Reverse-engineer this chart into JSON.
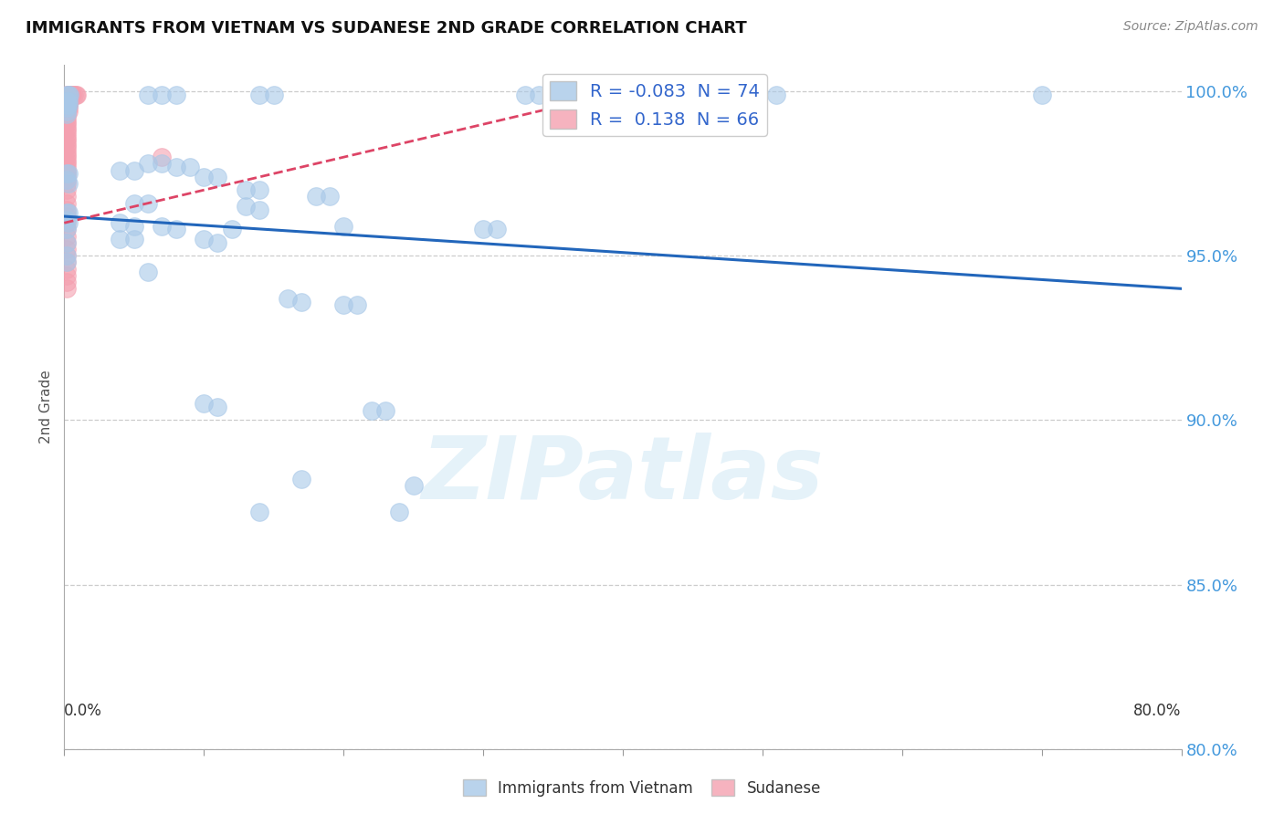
{
  "title": "IMMIGRANTS FROM VIETNAM VS SUDANESE 2ND GRADE CORRELATION CHART",
  "source": "Source: ZipAtlas.com",
  "ylabel": "2nd Grade",
  "x_range": [
    0.0,
    0.8
  ],
  "y_range": [
    0.818,
    1.008
  ],
  "legend_r_blue": "-0.083",
  "legend_n_blue": "74",
  "legend_r_pink": "0.138",
  "legend_n_pink": "66",
  "blue_color": "#a8c8e8",
  "pink_color": "#f4a0b0",
  "trendline_blue_color": "#2266bb",
  "trendline_pink_color": "#dd4466",
  "watermark": "ZIPatlas",
  "trendline_blue": [
    [
      0.0,
      0.962
    ],
    [
      0.8,
      0.94
    ]
  ],
  "trendline_pink": [
    [
      0.0,
      0.96
    ],
    [
      0.4,
      1.0
    ]
  ],
  "blue_points": [
    [
      0.002,
      0.999
    ],
    [
      0.003,
      0.999
    ],
    [
      0.004,
      0.999
    ],
    [
      0.06,
      0.999
    ],
    [
      0.07,
      0.999
    ],
    [
      0.08,
      0.999
    ],
    [
      0.14,
      0.999
    ],
    [
      0.15,
      0.999
    ],
    [
      0.33,
      0.999
    ],
    [
      0.34,
      0.999
    ],
    [
      0.51,
      0.999
    ],
    [
      0.7,
      0.999
    ],
    [
      0.002,
      0.997
    ],
    [
      0.003,
      0.997
    ],
    [
      0.002,
      0.996
    ],
    [
      0.003,
      0.996
    ],
    [
      0.002,
      0.995
    ],
    [
      0.002,
      0.994
    ],
    [
      0.002,
      0.993
    ],
    [
      0.06,
      0.978
    ],
    [
      0.07,
      0.978
    ],
    [
      0.08,
      0.977
    ],
    [
      0.09,
      0.977
    ],
    [
      0.04,
      0.976
    ],
    [
      0.05,
      0.976
    ],
    [
      0.002,
      0.975
    ],
    [
      0.003,
      0.975
    ],
    [
      0.002,
      0.973
    ],
    [
      0.003,
      0.972
    ],
    [
      0.1,
      0.974
    ],
    [
      0.11,
      0.974
    ],
    [
      0.13,
      0.97
    ],
    [
      0.14,
      0.97
    ],
    [
      0.18,
      0.968
    ],
    [
      0.19,
      0.968
    ],
    [
      0.05,
      0.966
    ],
    [
      0.06,
      0.966
    ],
    [
      0.13,
      0.965
    ],
    [
      0.14,
      0.964
    ],
    [
      0.002,
      0.963
    ],
    [
      0.003,
      0.963
    ],
    [
      0.002,
      0.961
    ],
    [
      0.003,
      0.96
    ],
    [
      0.04,
      0.96
    ],
    [
      0.05,
      0.959
    ],
    [
      0.07,
      0.959
    ],
    [
      0.08,
      0.958
    ],
    [
      0.12,
      0.958
    ],
    [
      0.2,
      0.959
    ],
    [
      0.3,
      0.958
    ],
    [
      0.31,
      0.958
    ],
    [
      0.002,
      0.958
    ],
    [
      0.04,
      0.955
    ],
    [
      0.05,
      0.955
    ],
    [
      0.1,
      0.955
    ],
    [
      0.11,
      0.954
    ],
    [
      0.002,
      0.954
    ],
    [
      0.002,
      0.95
    ],
    [
      0.002,
      0.948
    ],
    [
      0.06,
      0.945
    ],
    [
      0.16,
      0.937
    ],
    [
      0.17,
      0.936
    ],
    [
      0.2,
      0.935
    ],
    [
      0.21,
      0.935
    ],
    [
      0.1,
      0.905
    ],
    [
      0.11,
      0.904
    ],
    [
      0.22,
      0.903
    ],
    [
      0.23,
      0.903
    ],
    [
      0.17,
      0.882
    ],
    [
      0.25,
      0.88
    ],
    [
      0.14,
      0.872
    ],
    [
      0.24,
      0.872
    ]
  ],
  "pink_points": [
    [
      0.002,
      0.999
    ],
    [
      0.003,
      0.999
    ],
    [
      0.004,
      0.999
    ],
    [
      0.005,
      0.999
    ],
    [
      0.006,
      0.999
    ],
    [
      0.007,
      0.999
    ],
    [
      0.008,
      0.999
    ],
    [
      0.009,
      0.999
    ],
    [
      0.002,
      0.998
    ],
    [
      0.003,
      0.998
    ],
    [
      0.004,
      0.998
    ],
    [
      0.002,
      0.997
    ],
    [
      0.003,
      0.997
    ],
    [
      0.004,
      0.997
    ],
    [
      0.002,
      0.996
    ],
    [
      0.003,
      0.996
    ],
    [
      0.002,
      0.995
    ],
    [
      0.003,
      0.995
    ],
    [
      0.002,
      0.994
    ],
    [
      0.003,
      0.994
    ],
    [
      0.002,
      0.993
    ],
    [
      0.002,
      0.992
    ],
    [
      0.002,
      0.991
    ],
    [
      0.002,
      0.99
    ],
    [
      0.002,
      0.989
    ],
    [
      0.002,
      0.988
    ],
    [
      0.002,
      0.987
    ],
    [
      0.002,
      0.986
    ],
    [
      0.002,
      0.985
    ],
    [
      0.002,
      0.984
    ],
    [
      0.002,
      0.983
    ],
    [
      0.002,
      0.982
    ],
    [
      0.002,
      0.981
    ],
    [
      0.002,
      0.98
    ],
    [
      0.002,
      0.979
    ],
    [
      0.002,
      0.978
    ],
    [
      0.07,
      0.98
    ],
    [
      0.002,
      0.977
    ],
    [
      0.002,
      0.976
    ],
    [
      0.002,
      0.975
    ],
    [
      0.002,
      0.974
    ],
    [
      0.002,
      0.973
    ],
    [
      0.002,
      0.972
    ],
    [
      0.002,
      0.97
    ],
    [
      0.002,
      0.968
    ],
    [
      0.002,
      0.966
    ],
    [
      0.002,
      0.964
    ],
    [
      0.002,
      0.962
    ],
    [
      0.002,
      0.96
    ],
    [
      0.002,
      0.958
    ],
    [
      0.002,
      0.956
    ],
    [
      0.002,
      0.954
    ],
    [
      0.002,
      0.952
    ],
    [
      0.002,
      0.95
    ],
    [
      0.002,
      0.948
    ],
    [
      0.002,
      0.946
    ],
    [
      0.002,
      0.944
    ],
    [
      0.002,
      0.942
    ],
    [
      0.002,
      0.94
    ]
  ]
}
